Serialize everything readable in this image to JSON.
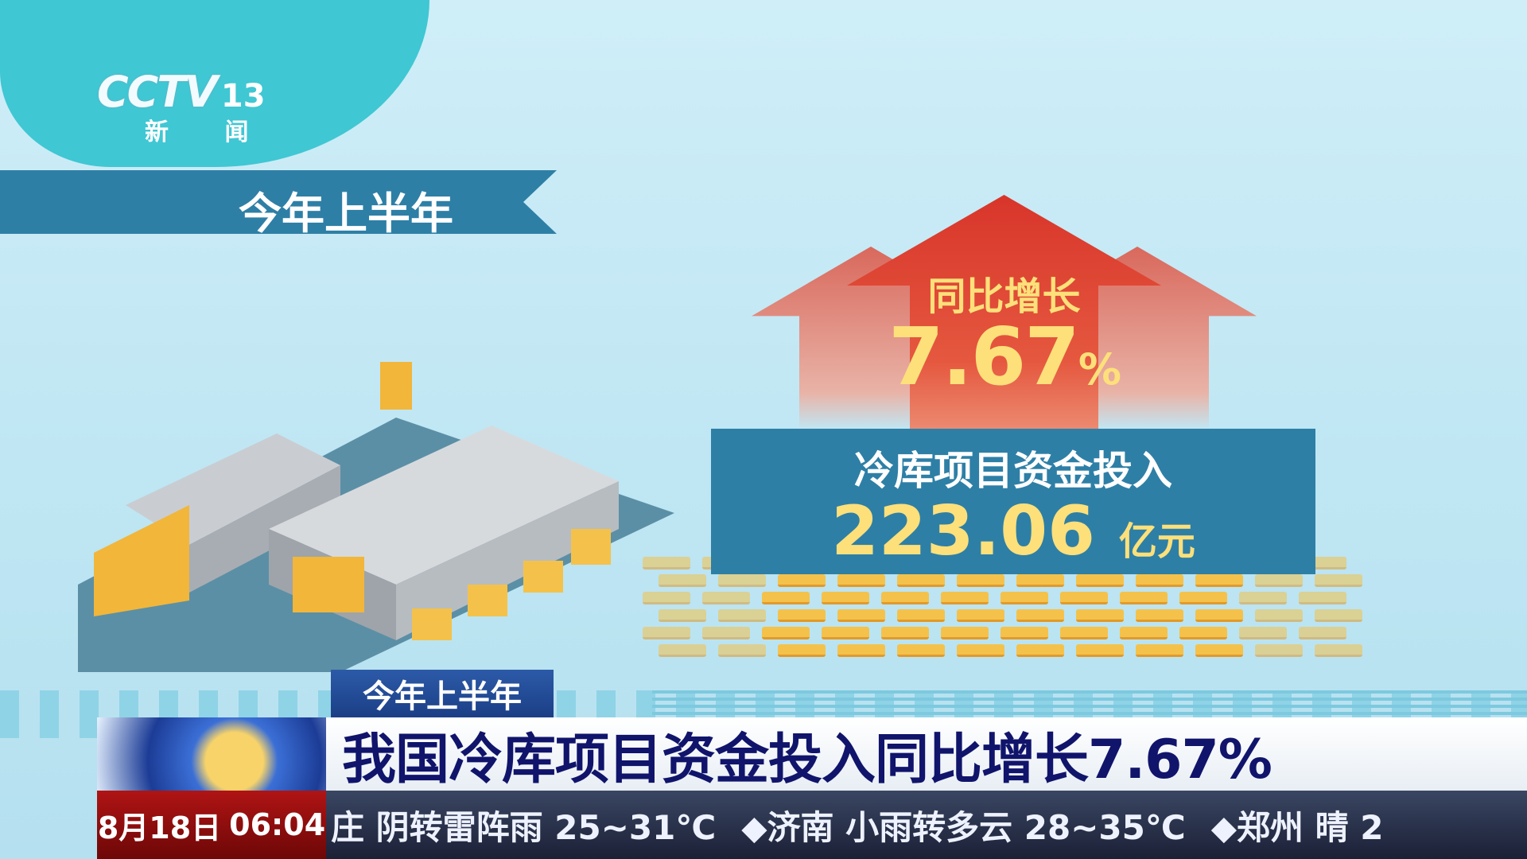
{
  "logo": {
    "brand": "CCTV",
    "channel": "13",
    "name": "新 闻"
  },
  "banner": {
    "text": "今年上半年"
  },
  "growth": {
    "label": "同比增长",
    "value": "7.67",
    "unit": "%"
  },
  "investment": {
    "label": "冷库项目资金投入",
    "value": "223.06",
    "unit": "亿元"
  },
  "lower_third": {
    "tag": "今年上半年",
    "headline": "我国冷库项目资金投入同比增长7.67%"
  },
  "clock": {
    "date": "8月18日",
    "time": "06:04"
  },
  "ticker": {
    "items": [
      "庄 阴转雷阵雨 25~31℃",
      "◆济南 小雨转多云 28~35℃",
      "◆郑州 晴 2"
    ]
  },
  "colors": {
    "band": "#2e7fa6",
    "arrow": "#d8352a",
    "highlight": "#fde07a",
    "headline": "#10146b",
    "date_bg": "#b01414"
  }
}
